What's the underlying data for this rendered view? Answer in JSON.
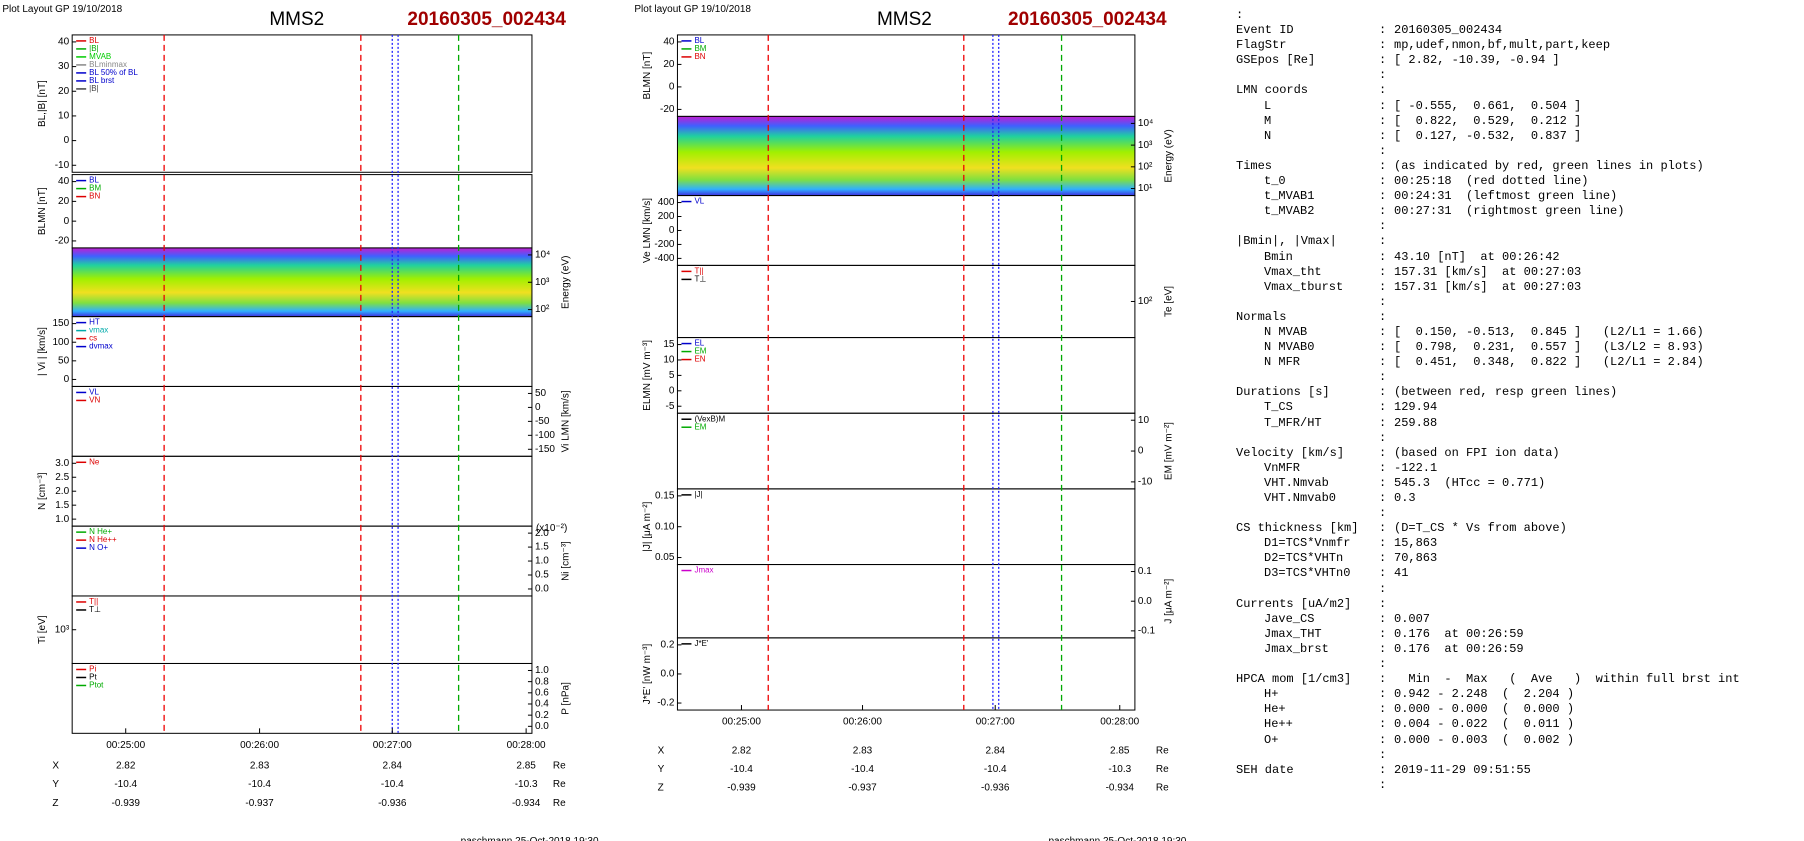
{
  "plots": [
    {
      "header": "Plot Layout GP 19/10/2018",
      "title": "MMS2",
      "event": "20160305_002434",
      "panels": [
        {
          "ylabel": "BL,|B| [nT]",
          "side": "left",
          "yticks": [
            "40",
            "30",
            "20",
            "10",
            "0",
            "-10"
          ],
          "legend": [
            {
              "name": "BL",
              "color": "#d00"
            },
            {
              "name": "|B|",
              "color": "#0a0"
            },
            {
              "name": "MVAB",
              "color": "#0c0"
            },
            {
              "name": "BLminmax",
              "color": "#888"
            },
            {
              "name": "BL 50% of BL",
              "color": "#00c"
            },
            {
              "name": "BL brst",
              "color": "#00c"
            },
            {
              "name": "|B|",
              "color": "#444"
            }
          ]
        },
        {
          "ylabel": "BLMN [nT]",
          "side": "left",
          "yticks": [
            "40",
            "20",
            "0",
            "-20"
          ],
          "legend": [
            {
              "name": "BL",
              "color": "#00c"
            },
            {
              "name": "BM",
              "color": "#0a0"
            },
            {
              "name": "BN",
              "color": "#d00"
            }
          ]
        },
        {
          "ylabel": "Energy (eV)",
          "side": "right",
          "yticks": [
            "10⁴",
            "10³",
            "10²"
          ],
          "spectrogram": true
        },
        {
          "ylabel": "| Vi | [km/s]",
          "side": "left",
          "yticks": [
            "150",
            "100",
            "50",
            "0"
          ],
          "legend": [
            {
              "name": "HT",
              "color": "#00c"
            },
            {
              "name": "vmax",
              "color": "#0aa"
            },
            {
              "name": "cs",
              "color": "#d00"
            },
            {
              "name": "dvmax",
              "color": "#00c"
            }
          ]
        },
        {
          "ylabel": "Vi LMN [km/s]",
          "side": "right",
          "yticks": [
            "50",
            "0",
            "-50",
            "-100",
            "-150"
          ],
          "legend": [
            {
              "name": "VL",
              "color": "#00c"
            },
            {
              "name": "VN",
              "color": "#d00"
            }
          ]
        },
        {
          "ylabel": "N [cm⁻³]",
          "side": "left",
          "yticks": [
            "3.0",
            "2.5",
            "2.0",
            "1.5",
            "1.0"
          ],
          "legend": [
            {
              "name": "Ne",
              "color": "#d00"
            }
          ]
        },
        {
          "ylabel": "Ni [cm⁻³]",
          "side": "right",
          "yticks": [
            "2.0",
            "1.5",
            "1.0",
            "0.5",
            "0.0"
          ],
          "note": "(x10⁻²)",
          "legend": [
            {
              "name": "N He+",
              "color": "#0a0"
            },
            {
              "name": "N He++",
              "color": "#d00"
            },
            {
              "name": "N O+",
              "color": "#00c"
            }
          ]
        },
        {
          "ylabel": "Ti [eV]",
          "side": "left",
          "yticks": [
            "10³"
          ],
          "legend": [
            {
              "name": "T||",
              "color": "#d00"
            },
            {
              "name": "T⊥",
              "color": "#000"
            }
          ]
        },
        {
          "ylabel": "P [nPa]",
          "side": "right",
          "yticks": [
            "1.0",
            "0.8",
            "0.6",
            "0.4",
            "0.2",
            "0.0"
          ],
          "legend": [
            {
              "name": "Pi",
              "color": "#d00"
            },
            {
              "name": "Pt",
              "color": "#000"
            },
            {
              "name": "Ptot",
              "color": "#0a0"
            }
          ]
        }
      ],
      "times": [
        "00:25:00",
        "00:26:00",
        "00:27:00",
        "00:28:00"
      ],
      "ephemeris": [
        {
          "name": "X",
          "values": [
            "2.82",
            "2.83",
            "2.84",
            "2.85"
          ],
          "unit": "Re"
        },
        {
          "name": "Y",
          "values": [
            "-10.4",
            "-10.4",
            "-10.4",
            "-10.3"
          ],
          "unit": "Re"
        },
        {
          "name": "Z",
          "values": [
            "-0.939",
            "-0.937",
            "-0.936",
            "-0.934"
          ],
          "unit": "Re"
        }
      ],
      "footer": "paschmann 25-Oct-2018 19:30"
    },
    {
      "header": "Plot layout GP 19/10/2018",
      "title": "MMS2",
      "event": "20160305_002434",
      "panels": [
        {
          "ylabel": "BLMN [nT]",
          "side": "left",
          "yticks": [
            "40",
            "20",
            "0",
            "-20"
          ],
          "legend": [
            {
              "name": "BL",
              "color": "#00c"
            },
            {
              "name": "BM",
              "color": "#0a0"
            },
            {
              "name": "BN",
              "color": "#d00"
            }
          ]
        },
        {
          "ylabel": "Energy (eV)",
          "side": "right",
          "yticks": [
            "10⁴",
            "10³",
            "10²",
            "10¹"
          ],
          "spectrogram": true
        },
        {
          "ylabel": "Ve LMN [km/s]",
          "side": "left",
          "yticks": [
            "400",
            "200",
            "0",
            "-200",
            "-400"
          ],
          "legend": [
            {
              "name": "VL",
              "color": "#00c"
            }
          ]
        },
        {
          "ylabel": "Te [eV]",
          "side": "right",
          "yticks": [
            "10²"
          ],
          "legend": [
            {
              "name": "T||",
              "color": "#d00"
            },
            {
              "name": "T⊥",
              "color": "#000"
            }
          ]
        },
        {
          "ylabel": "ELMN [mV m⁻³]",
          "side": "left",
          "yticks": [
            "15",
            "10",
            "5",
            "0",
            "-5"
          ],
          "legend": [
            {
              "name": "EL",
              "color": "#00c"
            },
            {
              "name": "EM",
              "color": "#0a0"
            },
            {
              "name": "EN",
              "color": "#d00"
            }
          ]
        },
        {
          "ylabel": "EM [mV m⁻²]",
          "side": "right",
          "yticks": [
            "10",
            "0",
            "-10"
          ],
          "legend": [
            {
              "name": "(VexB)M",
              "color": "#000"
            },
            {
              "name": "EM",
              "color": "#0a0"
            }
          ]
        },
        {
          "ylabel": "|J| [μA m⁻²]",
          "side": "left",
          "yticks": [
            "0.15",
            "0.10",
            "0.05"
          ],
          "legend": [
            {
              "name": "|J|",
              "color": "#000"
            }
          ]
        },
        {
          "ylabel": "J [μA m⁻²]",
          "side": "right",
          "yticks": [
            "0.1",
            "0.0",
            "-0.1"
          ],
          "legend": [
            {
              "name": "Jmax",
              "color": "#c0c"
            }
          ]
        },
        {
          "ylabel": "J*E' [nW m⁻³]",
          "side": "left",
          "yticks": [
            "0.2",
            "0.0",
            "-0.2"
          ],
          "legend": [
            {
              "name": "J*E'",
              "color": "#000"
            }
          ]
        }
      ],
      "times": [
        "00:25:00",
        "00:26:00",
        "00:27:00",
        "00:28:00"
      ],
      "ephemeris": [
        {
          "name": "X",
          "values": [
            "2.82",
            "2.83",
            "2.84",
            "2.85"
          ],
          "unit": "Re"
        },
        {
          "name": "Y",
          "values": [
            "-10.4",
            "-10.4",
            "-10.4",
            "-10.3"
          ],
          "unit": "Re"
        },
        {
          "name": "Z",
          "values": [
            "-0.939",
            "-0.937",
            "-0.936",
            "-0.934"
          ],
          "unit": "Re"
        }
      ],
      "footer": "paschmann 25-Oct-2018 19:30"
    }
  ],
  "summary": [
    [
      {
        "label": "Event ID",
        "value": "20160305_002434"
      },
      {
        "label": "FlagStr",
        "value": "mp,udef,nmon,bf,mult,part,keep"
      },
      {
        "label": "GSEpos [Re]",
        "value": "[ 2.82, -10.39, -0.94 ]"
      }
    ],
    [
      {
        "label": "LMN coords"
      },
      {
        "label": "L",
        "value": "[ -0.555,  0.661,  0.504 ]"
      },
      {
        "label": "M",
        "value": "[  0.822,  0.529,  0.212 ]"
      },
      {
        "label": "N",
        "value": "[  0.127, -0.532,  0.837 ]"
      }
    ],
    [
      {
        "label": "Times",
        "value": "(as indicated by red, green lines in plots)"
      },
      {
        "label": "t_0",
        "value": "00:25:18  (red dotted line)"
      },
      {
        "label": "t_MVAB1",
        "value": "00:24:31  (leftmost green line)"
      },
      {
        "label": "t_MVAB2",
        "value": "00:27:31  (rightmost green line)"
      }
    ],
    [
      {
        "label": "|Bmin|, |Vmax|"
      },
      {
        "label": "Bmin",
        "value": "43.10 [nT]  at 00:26:42"
      },
      {
        "label": "Vmax_tht",
        "value": "157.31 [km/s]  at 00:27:03"
      },
      {
        "label": "Vmax_tburst",
        "value": "157.31 [km/s]  at 00:27:03"
      }
    ],
    [
      {
        "label": "Normals"
      },
      {
        "label": "N MVAB",
        "value": "[  0.150, -0.513,  0.845 ]   (L2/L1 = 1.66)"
      },
      {
        "label": "N MVAB0",
        "value": "[  0.798,  0.231,  0.557 ]   (L3/L2 = 8.93)"
      },
      {
        "label": "N MFR",
        "value": "[  0.451,  0.348,  0.822 ]   (L2/L1 = 2.84)"
      }
    ],
    [
      {
        "label": "Durations [s]",
        "value": "(between red, resp green lines)"
      },
      {
        "label": "T_CS",
        "value": "129.94"
      },
      {
        "label": "T_MFR/HT",
        "value": "259.88"
      }
    ],
    [
      {
        "label": "Velocity [km/s]",
        "value": "(based on FPI ion data)"
      },
      {
        "label": "VnMFR",
        "value": "-122.1"
      },
      {
        "label": "VHT.Nmvab",
        "value": "545.3  (HTcc = 0.771)"
      },
      {
        "label": "VHT.Nmvab0",
        "value": "0.3"
      }
    ],
    [
      {
        "label": "CS thickness [km]",
        "value": "(D=T_CS * Vs from above)"
      },
      {
        "label": "D1=TCS*Vnmfr",
        "value": "15,863"
      },
      {
        "label": "D2=TCS*VHTn",
        "value": "70,863"
      },
      {
        "label": "D3=TCS*VHTn0",
        "value": "41"
      }
    ],
    [
      {
        "label": "Currents [uA/m2]"
      },
      {
        "label": "Jave_CS",
        "value": "0.007"
      },
      {
        "label": "Jmax_THT",
        "value": "0.176  at 00:26:59"
      },
      {
        "label": "Jmax_brst",
        "value": "0.176  at 00:26:59"
      }
    ],
    [
      {
        "label": "HPCA mom [1/cm3]",
        "value": "  Min  -  Max   (  Ave   )  within full brst int"
      },
      {
        "label": "H+",
        "value": "0.942 - 2.248  (  2.204 )"
      },
      {
        "label": "He+",
        "value": "0.000 - 0.000  (  0.000 )"
      },
      {
        "label": "He++",
        "value": "0.004 - 0.022  (  0.011 )"
      },
      {
        "label": "O+",
        "value": "0.000 - 0.003  (  0.002 )"
      }
    ],
    [
      {
        "label": "SEH date",
        "value": "2019-11-29 09:51:55"
      }
    ]
  ]
}
